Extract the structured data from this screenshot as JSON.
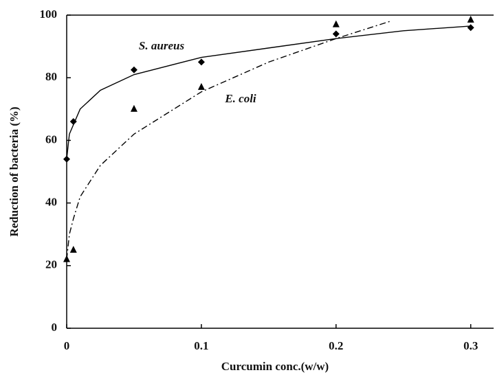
{
  "chart_data": {
    "type": "scatter",
    "x_label": "Curcumin conc.(w/w)",
    "y_label": "Reduction of bacteria (%)",
    "xlim": [
      0,
      0.317
    ],
    "xticks": [
      0,
      0.1,
      0.2,
      0.3
    ],
    "ylim": [
      0,
      100
    ],
    "yticks": [
      0,
      20,
      40,
      60,
      80,
      100
    ],
    "series": [
      {
        "name": "S. aureus",
        "color": "#000000",
        "marker": "diamond",
        "x": [
          0,
          0.005,
          0.05,
          0.1,
          0.2,
          0.3
        ],
        "values": [
          54,
          66,
          82.5,
          85,
          94,
          96
        ],
        "fit": {
          "dash": "solid",
          "x": [
            0,
            0.002,
            0.01,
            0.025,
            0.05,
            0.1,
            0.15,
            0.2,
            0.25,
            0.3
          ],
          "values": [
            54,
            62,
            70,
            76,
            81,
            86.5,
            89.5,
            92.5,
            95,
            96.5
          ]
        }
      },
      {
        "name": "E. coli",
        "color": "#000000",
        "marker": "triangle",
        "x": [
          0,
          0.005,
          0.05,
          0.1,
          0.2,
          0.3
        ],
        "values": [
          22,
          25,
          70,
          77,
          97,
          98.5
        ],
        "fit": {
          "dash": "dashdot",
          "x": [
            0,
            0.002,
            0.005,
            0.01,
            0.025,
            0.05,
            0.1,
            0.15,
            0.2,
            0.24
          ],
          "values": [
            22,
            30,
            35,
            42,
            52,
            62,
            75.5,
            85,
            92.5,
            98
          ]
        }
      }
    ]
  }
}
